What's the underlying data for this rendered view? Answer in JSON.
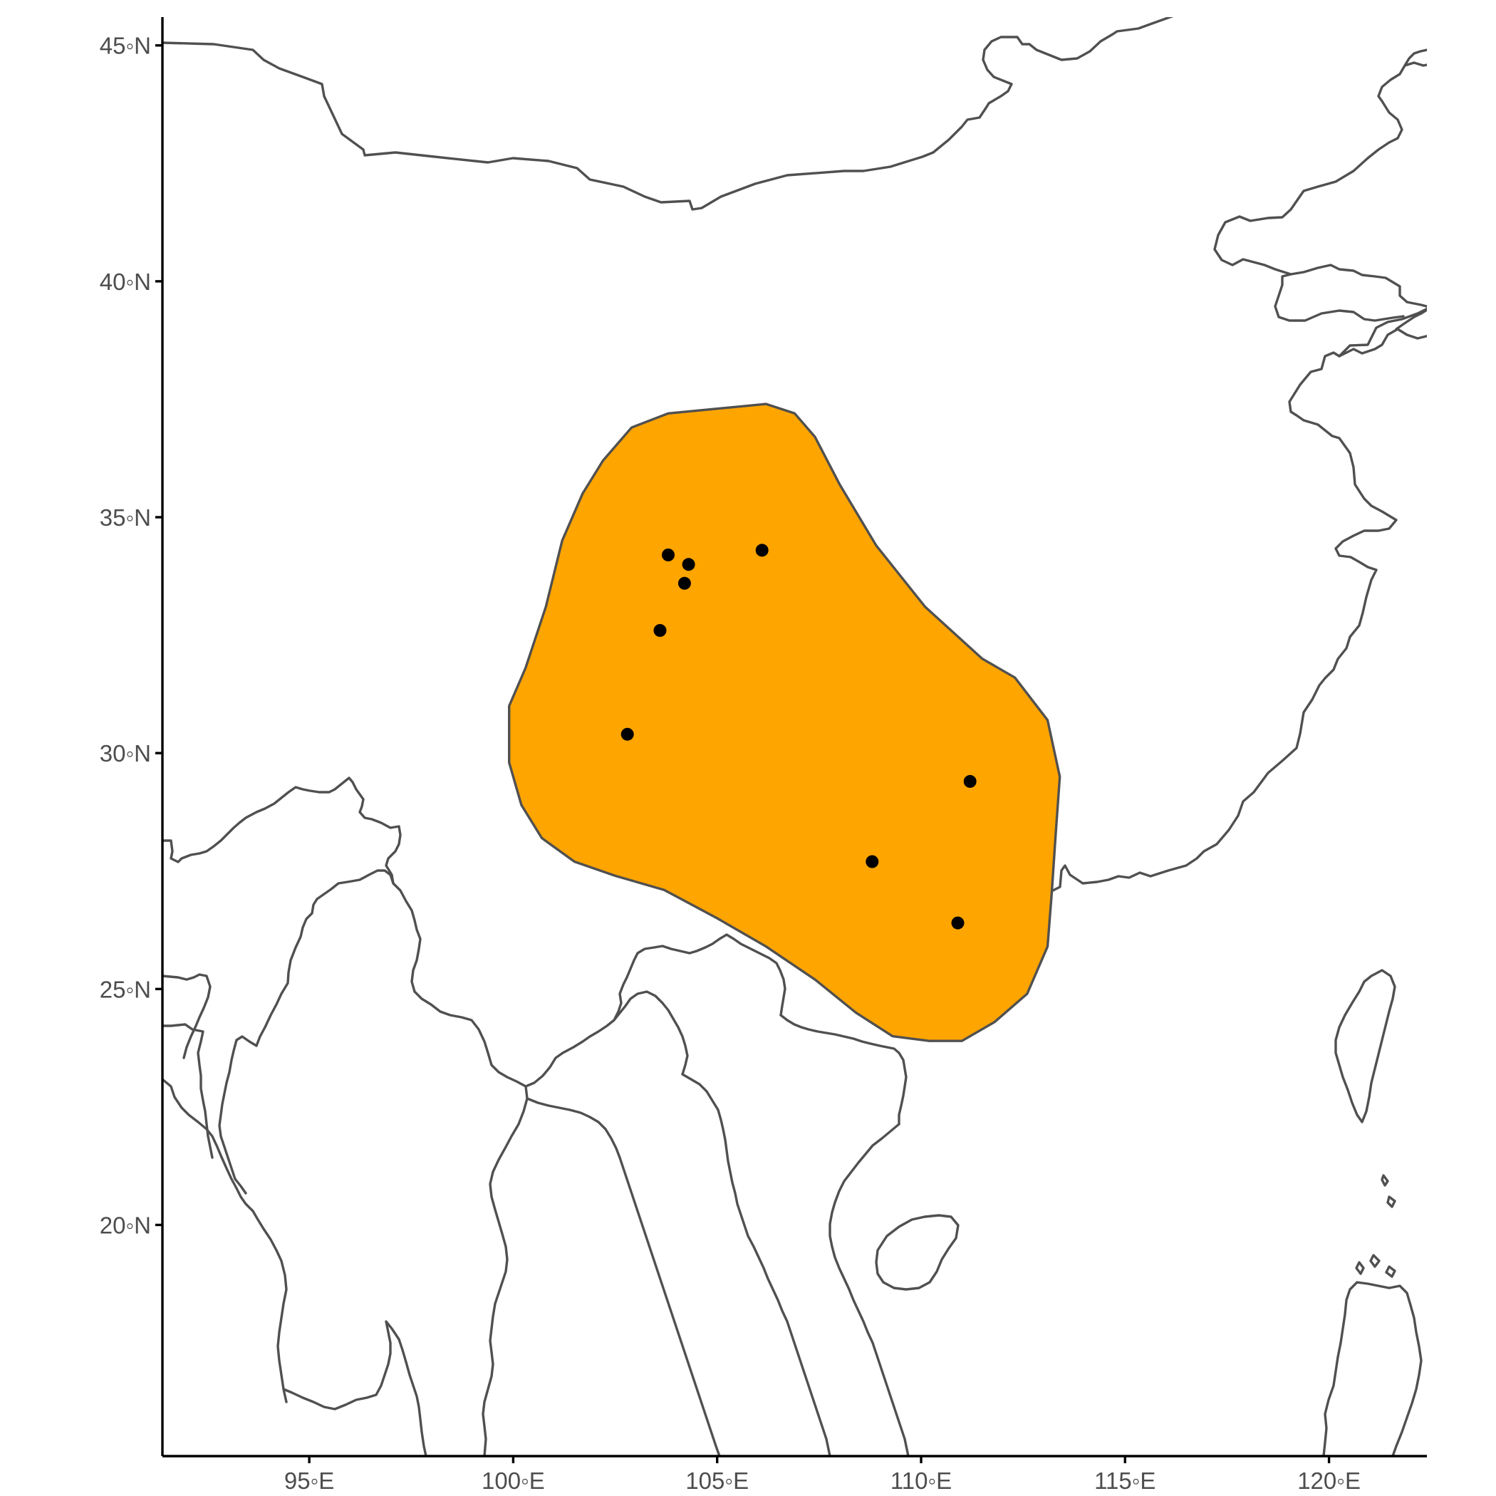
{
  "map": {
    "lon_range": [
      91.4,
      122.4
    ],
    "lat_range": [
      15.1,
      45.6
    ],
    "x_ticks": [
      {
        "value": 95,
        "label": "95◦E"
      },
      {
        "value": 100,
        "label": "100◦E"
      },
      {
        "value": 105,
        "label": "105◦E"
      },
      {
        "value": 110,
        "label": "110◦E"
      },
      {
        "value": 115,
        "label": "115◦E"
      },
      {
        "value": 120,
        "label": "120◦E"
      }
    ],
    "y_ticks": [
      {
        "value": 20,
        "label": "20◦N"
      },
      {
        "value": 25,
        "label": "25◦N"
      },
      {
        "value": 30,
        "label": "30◦N"
      },
      {
        "value": 35,
        "label": "35◦N"
      },
      {
        "value": 40,
        "label": "40◦N"
      },
      {
        "value": 45,
        "label": "45◦N"
      }
    ],
    "range_fill_color": "#FFA500",
    "range_outline_color": "#505050",
    "point_color": "#000000",
    "range_polygon": [
      [
        103.8,
        37.2
      ],
      [
        105.0,
        37.3
      ],
      [
        106.2,
        37.4
      ],
      [
        106.9,
        37.2
      ],
      [
        107.4,
        36.7
      ],
      [
        108.0,
        35.7
      ],
      [
        108.9,
        34.4
      ],
      [
        110.1,
        33.1
      ],
      [
        111.5,
        32.0
      ],
      [
        112.3,
        31.6
      ],
      [
        113.1,
        30.7
      ],
      [
        113.4,
        29.5
      ],
      [
        113.3,
        28.3
      ],
      [
        113.2,
        27.0
      ],
      [
        113.1,
        25.9
      ],
      [
        112.6,
        24.9
      ],
      [
        111.8,
        24.3
      ],
      [
        111.0,
        23.9
      ],
      [
        110.2,
        23.9
      ],
      [
        109.3,
        24.0
      ],
      [
        108.4,
        24.5
      ],
      [
        107.4,
        25.2
      ],
      [
        106.2,
        25.9
      ],
      [
        105.0,
        26.5
      ],
      [
        103.7,
        27.1
      ],
      [
        102.5,
        27.4
      ],
      [
        101.5,
        27.7
      ],
      [
        100.7,
        28.2
      ],
      [
        100.2,
        28.9
      ],
      [
        99.9,
        29.8
      ],
      [
        99.9,
        31.0
      ],
      [
        100.3,
        31.8
      ],
      [
        100.8,
        33.1
      ],
      [
        101.2,
        34.5
      ],
      [
        101.7,
        35.5
      ],
      [
        102.2,
        36.2
      ],
      [
        102.9,
        36.9
      ]
    ],
    "points": [
      {
        "lon": 103.8,
        "lat": 34.2
      },
      {
        "lon": 104.3,
        "lat": 34.0
      },
      {
        "lon": 104.2,
        "lat": 33.6
      },
      {
        "lon": 106.1,
        "lat": 34.3
      },
      {
        "lon": 103.6,
        "lat": 32.6
      },
      {
        "lon": 102.8,
        "lat": 30.4
      },
      {
        "lon": 111.2,
        "lat": 29.4
      },
      {
        "lon": 108.8,
        "lat": 27.7
      },
      {
        "lon": 110.9,
        "lat": 26.4
      }
    ]
  }
}
